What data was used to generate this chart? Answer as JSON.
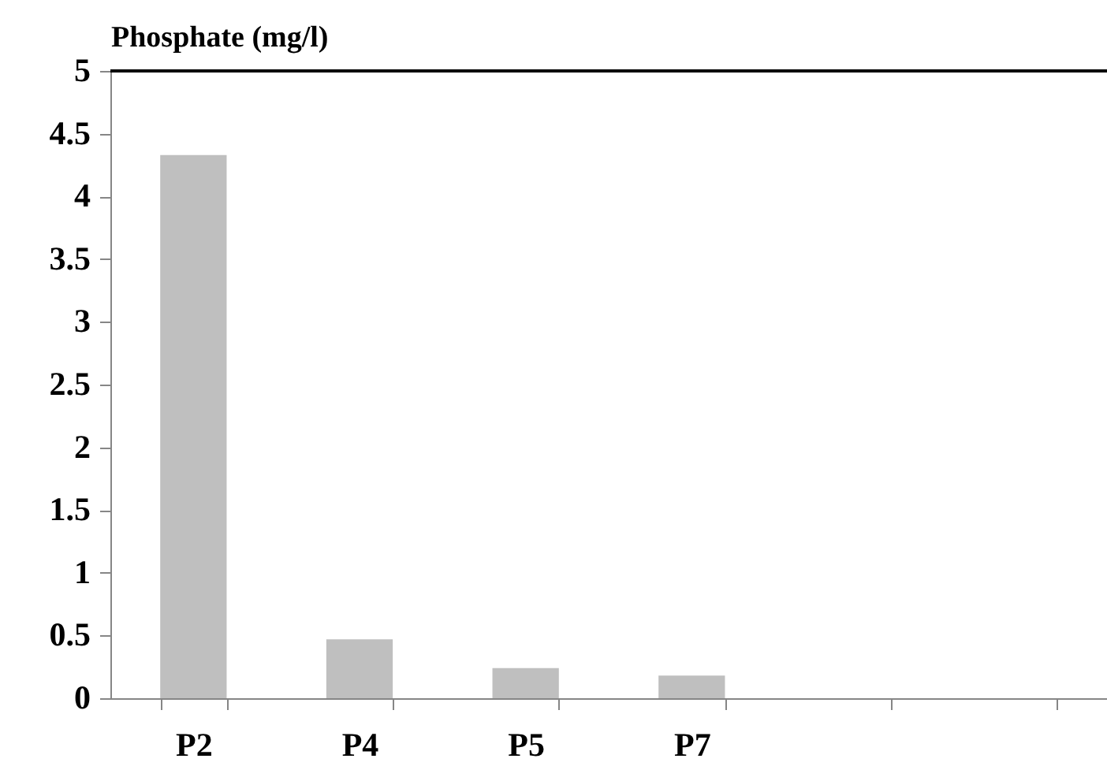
{
  "chart_data": {
    "type": "bar",
    "ylabel": "Phosphate (mg/l)",
    "categories": [
      "P2",
      "P4",
      "P5",
      "P7",
      null,
      null
    ],
    "values": [
      4.33,
      0.47,
      0.24,
      0.18,
      null,
      null
    ],
    "color": "#bfbfbf",
    "ylim": [
      0,
      5
    ],
    "yticks": [
      0,
      0.5,
      1,
      1.5,
      2,
      2.5,
      3,
      3.5,
      4,
      4.5,
      5
    ],
    "grid": false
  }
}
